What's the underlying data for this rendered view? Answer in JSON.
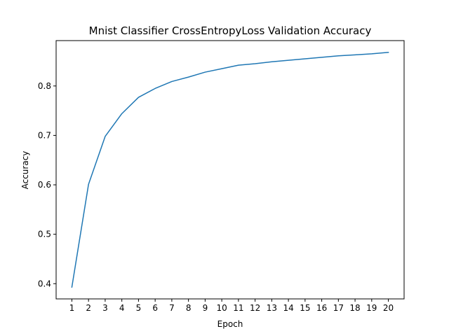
{
  "chart_data": {
    "type": "line",
    "title": "Mnist Classifier CrossEntropyLoss Validation Accuracy",
    "xlabel": "Epoch",
    "ylabel": "Accuracy",
    "x": [
      1,
      2,
      3,
      4,
      5,
      6,
      7,
      8,
      9,
      10,
      11,
      12,
      13,
      14,
      15,
      16,
      17,
      18,
      19,
      20
    ],
    "series": [
      {
        "values": [
          0.393,
          0.601,
          0.698,
          0.744,
          0.777,
          0.795,
          0.809,
          0.818,
          0.828,
          0.835,
          0.842,
          0.845,
          0.849,
          0.852,
          0.855,
          0.858,
          0.861,
          0.863,
          0.865,
          0.868
        ],
        "color": "#1f77b4"
      }
    ],
    "xlim": [
      0.055,
      20.945
    ],
    "ylim": [
      0.3692,
      0.8918
    ],
    "xticks": [
      "1",
      "2",
      "3",
      "4",
      "5",
      "6",
      "7",
      "8",
      "9",
      "10",
      "11",
      "12",
      "13",
      "14",
      "15",
      "16",
      "17",
      "18",
      "19",
      "20"
    ],
    "yticks": [
      "0.4",
      "0.5",
      "0.6",
      "0.7",
      "0.8"
    ],
    "grid": false,
    "legend": "none"
  }
}
